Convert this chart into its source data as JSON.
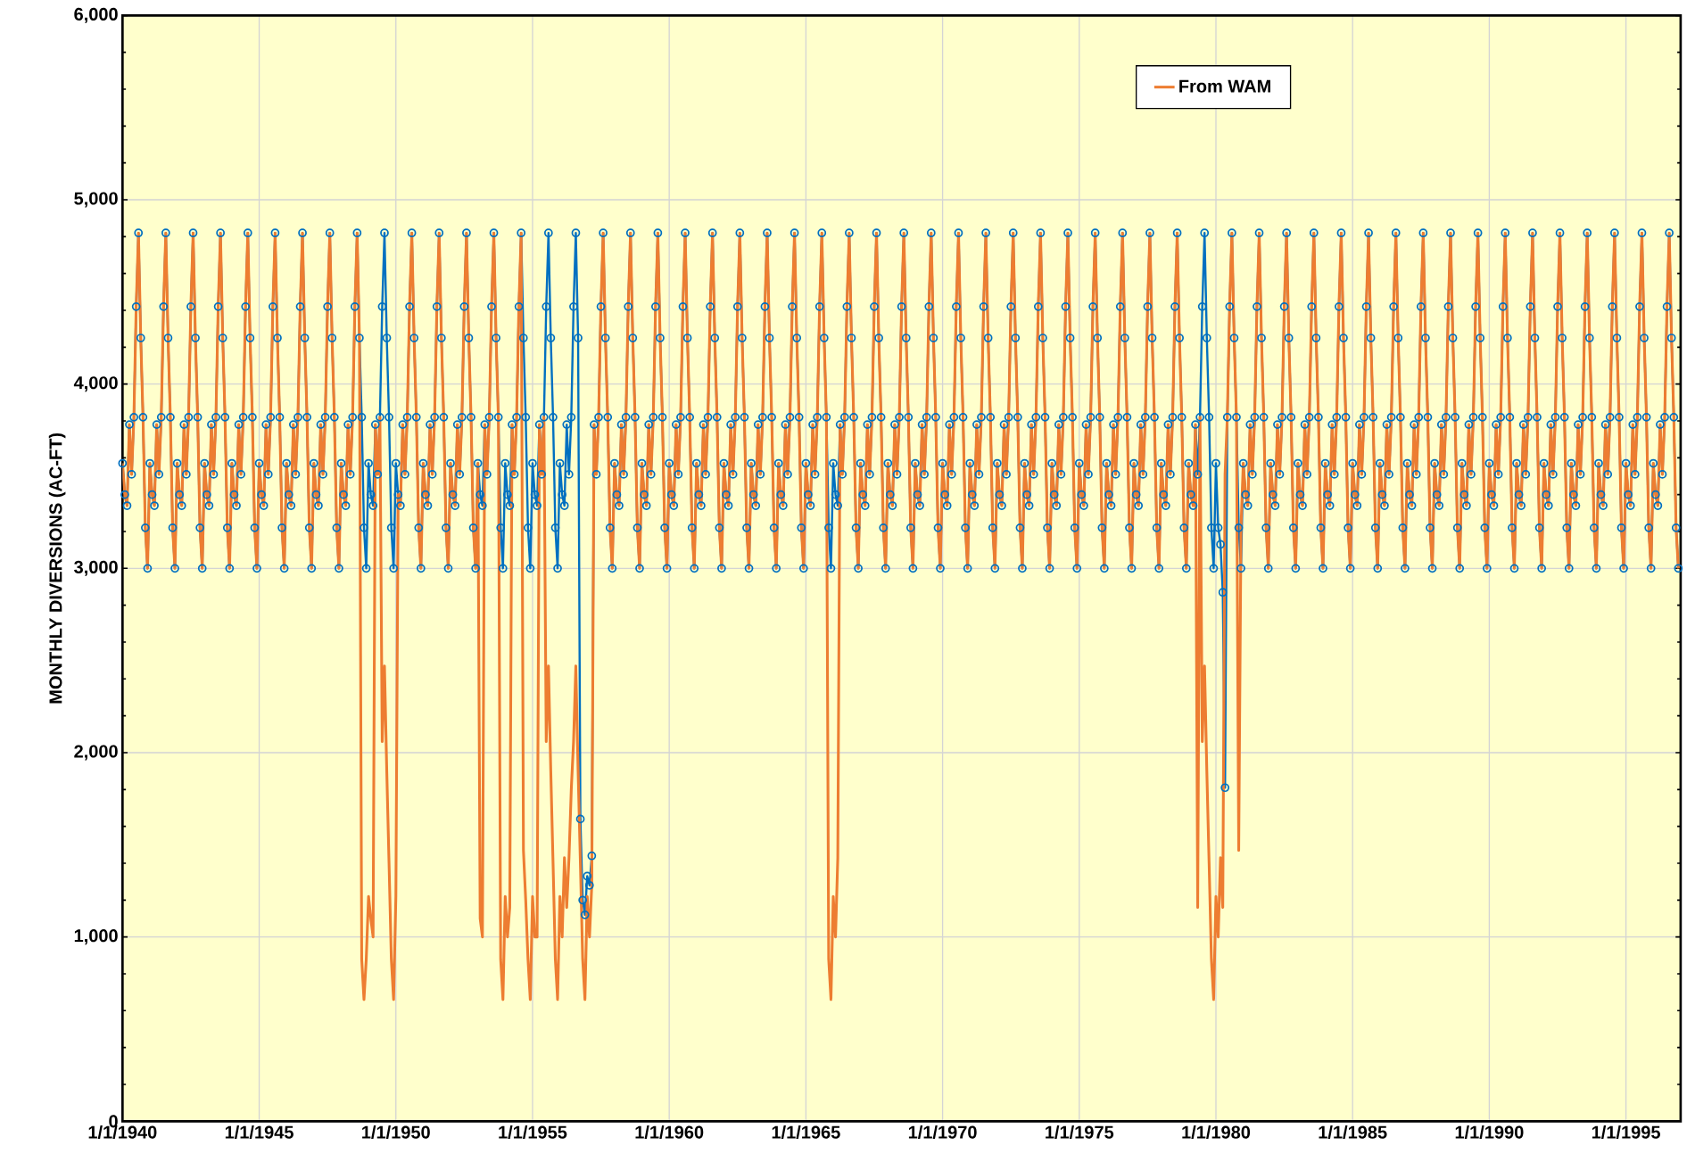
{
  "chart_data": {
    "type": "line",
    "ylabel": "MONTHLY DIVERSIONS (AC-FT)",
    "xlim": [
      "1940-01-01",
      "1997-01-01"
    ],
    "ylim": [
      0,
      6000
    ],
    "xticks": [
      {
        "value": "1940-01-01",
        "label": "1/1/1940"
      },
      {
        "value": "1945-01-01",
        "label": "1/1/1945"
      },
      {
        "value": "1950-01-01",
        "label": "1/1/1950"
      },
      {
        "value": "1955-01-01",
        "label": "1/1/1955"
      },
      {
        "value": "1960-01-01",
        "label": "1/1/1960"
      },
      {
        "value": "1965-01-01",
        "label": "1/1/1965"
      },
      {
        "value": "1970-01-01",
        "label": "1/1/1970"
      },
      {
        "value": "1975-01-01",
        "label": "1/1/1975"
      },
      {
        "value": "1980-01-01",
        "label": "1/1/1980"
      },
      {
        "value": "1985-01-01",
        "label": "1/1/1985"
      },
      {
        "value": "1990-01-01",
        "label": "1/1/1990"
      },
      {
        "value": "1995-01-01",
        "label": "1/1/1995"
      }
    ],
    "yticks": [
      0,
      {
        "value": 1000,
        "label": "1,000"
      },
      {
        "value": 2000,
        "label": "2,000"
      },
      {
        "value": 3000,
        "label": "3,000"
      },
      {
        "value": 4000,
        "label": "4,000"
      },
      {
        "value": 5000,
        "label": "5,000"
      },
      {
        "value": 6000,
        "label": "6,000"
      }
    ],
    "grid": true,
    "legend": "top right",
    "x": [
      "1940-01",
      "1940-02",
      "1940-03",
      "1940-04",
      "1940-05",
      "1940-06",
      "1940-07",
      "1940-08",
      "1940-09",
      "1940-10",
      "1940-11",
      "1940-12",
      "1941-01",
      "1941-02",
      "1941-03",
      "1941-04",
      "1941-05",
      "1941-06",
      "1941-07",
      "1941-08",
      "1941-09",
      "1941-10",
      "1941-11",
      "1941-12",
      "1942-01",
      "1942-02",
      "1942-03",
      "1942-04",
      "1942-05",
      "1942-06",
      "1942-07",
      "1942-08",
      "1942-09",
      "1942-10",
      "1942-11",
      "1942-12",
      "1943-01",
      "1943-02",
      "1943-03",
      "1943-04",
      "1943-05",
      "1943-06",
      "1943-07",
      "1943-08",
      "1943-09",
      "1943-10",
      "1943-11",
      "1943-12",
      "1944-01",
      "1944-02",
      "1944-03",
      "1944-04",
      "1944-05",
      "1944-06",
      "1944-07",
      "1944-08",
      "1944-09",
      "1944-10",
      "1944-11",
      "1944-12",
      "1945-01",
      "1945-02",
      "1945-03",
      "1945-04",
      "1945-05",
      "1945-06",
      "1945-07",
      "1945-08",
      "1945-09",
      "1945-10",
      "1945-11",
      "1945-12",
      "1946-01",
      "1946-02",
      "1946-03",
      "1946-04",
      "1946-05",
      "1946-06",
      "1946-07",
      "1946-08",
      "1946-09",
      "1946-10",
      "1946-11",
      "1946-12",
      "1947-01",
      "1947-02",
      "1947-03",
      "1947-04",
      "1947-05",
      "1947-06",
      "1947-07",
      "1947-08",
      "1947-09",
      "1947-10",
      "1947-11",
      "1947-12",
      "1948-01",
      "1948-02",
      "1948-03",
      "1948-04",
      "1948-05",
      "1948-06",
      "1948-07",
      "1948-08",
      "1948-09",
      "1948-10",
      "1948-11",
      "1948-12",
      "1949-01",
      "1949-02",
      "1949-03",
      "1949-04",
      "1949-05",
      "1949-06",
      "1949-07",
      "1949-08",
      "1949-09",
      "1949-10",
      "1949-11",
      "1949-12",
      "1950-01",
      "1950-02",
      "1950-03",
      "1950-04",
      "1950-05",
      "1950-06",
      "1950-07",
      "1950-08",
      "1950-09",
      "1950-10",
      "1950-11",
      "1950-12",
      "1951-01",
      "1951-02",
      "1951-03",
      "1951-04",
      "1951-05",
      "1951-06",
      "1951-07",
      "1951-08",
      "1951-09",
      "1951-10",
      "1951-11",
      "1951-12",
      "1952-01",
      "1952-02",
      "1952-03",
      "1952-04",
      "1952-05",
      "1952-06",
      "1952-07",
      "1952-08",
      "1952-09",
      "1952-10",
      "1952-11",
      "1952-12",
      "1953-01",
      "1953-02",
      "1953-03",
      "1953-04",
      "1953-05",
      "1953-06",
      "1953-07",
      "1953-08",
      "1953-09",
      "1953-10",
      "1953-11",
      "1953-12",
      "1954-01",
      "1954-02",
      "1954-03",
      "1954-04",
      "1954-05",
      "1954-06",
      "1954-07",
      "1954-08",
      "1954-09",
      "1954-10",
      "1954-11",
      "1954-12",
      "1955-01",
      "1955-02",
      "1955-03",
      "1955-04",
      "1955-05",
      "1955-06",
      "1955-07",
      "1955-08",
      "1955-09",
      "1955-10",
      "1955-11",
      "1955-12",
      "1956-01",
      "1956-02",
      "1956-03",
      "1956-04",
      "1956-05",
      "1956-06",
      "1956-07",
      "1956-08",
      "1956-09",
      "1956-10",
      "1956-11",
      "1956-12",
      "1957-01",
      "1957-02",
      "1957-03",
      "1957-04",
      "1957-05",
      "1957-06",
      "1957-07",
      "1957-08",
      "1957-09",
      "1957-10",
      "1957-11",
      "1957-12",
      "1958-01",
      "1958-02",
      "1958-03",
      "1958-04",
      "1958-05",
      "1958-06",
      "1958-07",
      "1958-08",
      "1958-09",
      "1958-10",
      "1958-11",
      "1958-12",
      "1959-01",
      "1959-02",
      "1959-03",
      "1959-04",
      "1959-05",
      "1959-06",
      "1959-07",
      "1959-08",
      "1959-09",
      "1959-10",
      "1959-11",
      "1959-12",
      "1960-01",
      "1960-02",
      "1960-03",
      "1960-04",
      "1960-05",
      "1960-06",
      "1960-07",
      "1960-08",
      "1960-09",
      "1960-10",
      "1960-11",
      "1960-12",
      "1961-01",
      "1961-02",
      "1961-03",
      "1961-04",
      "1961-05",
      "1961-06",
      "1961-07",
      "1961-08",
      "1961-09",
      "1961-10",
      "1961-11",
      "1961-12",
      "1962-01",
      "1962-02",
      "1962-03",
      "1962-04",
      "1962-05",
      "1962-06",
      "1962-07",
      "1962-08",
      "1962-09",
      "1962-10",
      "1962-11",
      "1962-12",
      "1963-01",
      "1963-02",
      "1963-03",
      "1963-04",
      "1963-05",
      "1963-06",
      "1963-07",
      "1963-08",
      "1963-09",
      "1963-10",
      "1963-11",
      "1963-12",
      "1964-01",
      "1964-02",
      "1964-03",
      "1964-04",
      "1964-05",
      "1964-06",
      "1964-07",
      "1964-08",
      "1964-09",
      "1964-10",
      "1964-11",
      "1964-12",
      "1965-01",
      "1965-02",
      "1965-03",
      "1965-04",
      "1965-05",
      "1965-06",
      "1965-07",
      "1965-08",
      "1965-09",
      "1965-10",
      "1965-11",
      "1965-12",
      "1966-01",
      "1966-02",
      "1966-03",
      "1966-04",
      "1966-05",
      "1966-06",
      "1966-07",
      "1966-08",
      "1966-09",
      "1966-10",
      "1966-11",
      "1966-12",
      "1967-01",
      "1967-02",
      "1967-03",
      "1967-04",
      "1967-05",
      "1967-06",
      "1967-07",
      "1967-08",
      "1967-09",
      "1967-10",
      "1967-11",
      "1967-12",
      "1968-01",
      "1968-02",
      "1968-03",
      "1968-04",
      "1968-05",
      "1968-06",
      "1968-07",
      "1968-08",
      "1968-09",
      "1968-10",
      "1968-11",
      "1968-12",
      "1969-01",
      "1969-02",
      "1969-03",
      "1969-04",
      "1969-05",
      "1969-06",
      "1969-07",
      "1969-08",
      "1969-09",
      "1969-10",
      "1969-11",
      "1969-12",
      "1970-01",
      "1970-02",
      "1970-03",
      "1970-04",
      "1970-05",
      "1970-06",
      "1970-07",
      "1970-08",
      "1970-09",
      "1970-10",
      "1970-11",
      "1970-12",
      "1971-01",
      "1971-02",
      "1971-03",
      "1971-04",
      "1971-05",
      "1971-06",
      "1971-07",
      "1971-08",
      "1971-09",
      "1971-10",
      "1971-11",
      "1971-12",
      "1972-01",
      "1972-02",
      "1972-03",
      "1972-04",
      "1972-05",
      "1972-06",
      "1972-07",
      "1972-08",
      "1972-09",
      "1972-10",
      "1972-11",
      "1972-12",
      "1973-01",
      "1973-02",
      "1973-03",
      "1973-04",
      "1973-05",
      "1973-06",
      "1973-07",
      "1973-08",
      "1973-09",
      "1973-10",
      "1973-11",
      "1973-12",
      "1974-01",
      "1974-02",
      "1974-03",
      "1974-04",
      "1974-05",
      "1974-06",
      "1974-07",
      "1974-08",
      "1974-09",
      "1974-10",
      "1974-11",
      "1974-12",
      "1975-01",
      "1975-02",
      "1975-03",
      "1975-04",
      "1975-05",
      "1975-06",
      "1975-07",
      "1975-08",
      "1975-09",
      "1975-10",
      "1975-11",
      "1975-12",
      "1976-01",
      "1976-02",
      "1976-03",
      "1976-04",
      "1976-05",
      "1976-06",
      "1976-07",
      "1976-08",
      "1976-09",
      "1976-10",
      "1976-11",
      "1976-12",
      "1977-01",
      "1977-02",
      "1977-03",
      "1977-04",
      "1977-05",
      "1977-06",
      "1977-07",
      "1977-08",
      "1977-09",
      "1977-10",
      "1977-11",
      "1977-12",
      "1978-01",
      "1978-02",
      "1978-03",
      "1978-04",
      "1978-05",
      "1978-06",
      "1978-07",
      "1978-08",
      "1978-09",
      "1978-10",
      "1978-11",
      "1978-12",
      "1979-01",
      "1979-02",
      "1979-03",
      "1979-04",
      "1979-05",
      "1979-06",
      "1979-07",
      "1979-08",
      "1979-09",
      "1979-10",
      "1979-11",
      "1979-12",
      "1980-01",
      "1980-02",
      "1980-03",
      "1980-04",
      "1980-05",
      "1980-06",
      "1980-07",
      "1980-08",
      "1980-09",
      "1980-10",
      "1980-11",
      "1980-12",
      "1981-01",
      "1981-02",
      "1981-03",
      "1981-04",
      "1981-05",
      "1981-06",
      "1981-07",
      "1981-08",
      "1981-09",
      "1981-10",
      "1981-11",
      "1981-12",
      "1982-01",
      "1982-02",
      "1982-03",
      "1982-04",
      "1982-05",
      "1982-06",
      "1982-07",
      "1982-08",
      "1982-09",
      "1982-10",
      "1982-11",
      "1982-12",
      "1983-01",
      "1983-02",
      "1983-03",
      "1983-04",
      "1983-05",
      "1983-06",
      "1983-07",
      "1983-08",
      "1983-09",
      "1983-10",
      "1983-11",
      "1983-12",
      "1984-01",
      "1984-02",
      "1984-03",
      "1984-04",
      "1984-05",
      "1984-06",
      "1984-07",
      "1984-08",
      "1984-09",
      "1984-10",
      "1984-11",
      "1984-12",
      "1985-01",
      "1985-02",
      "1985-03",
      "1985-04",
      "1985-05",
      "1985-06",
      "1985-07",
      "1985-08",
      "1985-09",
      "1985-10",
      "1985-11",
      "1985-12",
      "1986-01",
      "1986-02",
      "1986-03",
      "1986-04",
      "1986-05",
      "1986-06",
      "1986-07",
      "1986-08",
      "1986-09",
      "1986-10",
      "1986-11",
      "1986-12",
      "1987-01",
      "1987-02",
      "1987-03",
      "1987-04",
      "1987-05",
      "1987-06",
      "1987-07",
      "1987-08",
      "1987-09",
      "1987-10",
      "1987-11",
      "1987-12",
      "1988-01",
      "1988-02",
      "1988-03",
      "1988-04",
      "1988-05",
      "1988-06",
      "1988-07",
      "1988-08",
      "1988-09",
      "1988-10",
      "1988-11",
      "1988-12",
      "1989-01",
      "1989-02",
      "1989-03",
      "1989-04",
      "1989-05",
      "1989-06",
      "1989-07",
      "1989-08",
      "1989-09",
      "1989-10",
      "1989-11",
      "1989-12",
      "1990-01",
      "1990-02",
      "1990-03",
      "1990-04",
      "1990-05",
      "1990-06",
      "1990-07",
      "1990-08",
      "1990-09",
      "1990-10",
      "1990-11",
      "1990-12",
      "1991-01",
      "1991-02",
      "1991-03",
      "1991-04",
      "1991-05",
      "1991-06",
      "1991-07",
      "1991-08",
      "1991-09",
      "1991-10",
      "1991-11",
      "1991-12",
      "1992-01",
      "1992-02",
      "1992-03",
      "1992-04",
      "1992-05",
      "1992-06",
      "1992-07",
      "1992-08",
      "1992-09",
      "1992-10",
      "1992-11",
      "1992-12",
      "1993-01",
      "1993-02",
      "1993-03",
      "1993-04",
      "1993-05",
      "1993-06",
      "1993-07",
      "1993-08",
      "1993-09",
      "1993-10",
      "1993-11",
      "1993-12",
      "1994-01",
      "1994-02",
      "1994-03",
      "1994-04",
      "1994-05",
      "1994-06",
      "1994-07",
      "1994-08",
      "1994-09",
      "1994-10",
      "1994-11",
      "1994-12",
      "1995-01",
      "1995-02",
      "1995-03",
      "1995-04",
      "1995-05",
      "1995-06",
      "1995-07",
      "1995-08",
      "1995-09",
      "1995-10",
      "1995-11",
      "1995-12",
      "1996-01",
      "1996-02",
      "1996-03",
      "1996-04",
      "1996-05",
      "1996-06",
      "1996-07",
      "1996-08",
      "1996-09",
      "1996-10",
      "1996-11",
      "1996-12"
    ],
    "series": [
      {
        "color": "#0070c0",
        "marker": "circle",
        "values": [
          3570,
          3400,
          3340,
          3780,
          3510,
          3820,
          4420,
          4820,
          4250,
          3820,
          3220,
          3000,
          3570,
          3400,
          3340,
          3780,
          3510,
          3820,
          4420,
          4820,
          4250,
          3820,
          3220,
          3000,
          3570,
          3400,
          3340,
          3780,
          3510,
          3820,
          4420,
          4820,
          4250,
          3820,
          3220,
          3000,
          3570,
          3400,
          3340,
          3780,
          3510,
          3820,
          4420,
          4820,
          4250,
          3820,
          3220,
          3000,
          3570,
          3400,
          3340,
          3780,
          3510,
          3820,
          4420,
          4820,
          4250,
          3820,
          3220,
          3000,
          3570,
          3400,
          3340,
          3780,
          3510,
          3820,
          4420,
          4820,
          4250,
          3820,
          3220,
          3000,
          3570,
          3400,
          3340,
          3780,
          3510,
          3820,
          4420,
          4820,
          4250,
          3820,
          3220,
          3000,
          3570,
          3400,
          3340,
          3780,
          3510,
          3820,
          4420,
          4820,
          4250,
          3820,
          3220,
          3000,
          3570,
          3400,
          3340,
          3780,
          3510,
          3820,
          4420,
          4820,
          4250,
          3820,
          3220,
          3000,
          3570,
          3400,
          3340,
          3780,
          3510,
          3820,
          4420,
          4820,
          4250,
          3820,
          3220,
          3000,
          3570,
          3400,
          3340,
          3780,
          3510,
          3820,
          4420,
          4820,
          4250,
          3820,
          3220,
          3000,
          3570,
          3400,
          3340,
          3780,
          3510,
          3820,
          4420,
          4820,
          4250,
          3820,
          3220,
          3000,
          3570,
          3400,
          3340,
          3780,
          3510,
          3820,
          4420,
          4820,
          4250,
          3820,
          3220,
          3000,
          3570,
          3400,
          3340,
          3780,
          3510,
          3820,
          4420,
          4820,
          4250,
          3820,
          3220,
          3000,
          3570,
          3400,
          3340,
          3780,
          3510,
          3820,
          4420,
          4820,
          4250,
          3820,
          3220,
          3000,
          3570,
          3400,
          3340,
          3780,
          3510,
          3820,
          4420,
          4820,
          4250,
          3820,
          3220,
          3000,
          3570,
          3400,
          3340,
          3780,
          3510,
          3820,
          4420,
          4820,
          4250,
          1640,
          1200,
          1120,
          1330,
          1280,
          1440,
          3780,
          3510,
          3820,
          4420,
          4820,
          4250,
          3820,
          3220,
          3000,
          3570,
          3400,
          3340,
          3780,
          3510,
          3820,
          4420,
          4820,
          4250,
          3820,
          3220,
          3000,
          3570,
          3400,
          3340,
          3780,
          3510,
          3820,
          4420,
          4820,
          4250,
          3820,
          3220,
          3000,
          3570,
          3400,
          3340,
          3780,
          3510,
          3820,
          4420,
          4820,
          4250,
          3820,
          3220,
          3000,
          3570,
          3400,
          3340,
          3780,
          3510,
          3820,
          4420,
          4820,
          4250,
          3820,
          3220,
          3000,
          3570,
          3400,
          3340,
          3780,
          3510,
          3820,
          4420,
          4820,
          4250,
          3820,
          3220,
          3000,
          3570,
          3400,
          3340,
          3780,
          3510,
          3820,
          4420,
          4820,
          4250,
          3820,
          3220,
          3000,
          3570,
          3400,
          3340,
          3780,
          3510,
          3820,
          4420,
          4820,
          4250,
          3820,
          3220,
          3000,
          3570,
          3400,
          3340,
          3780,
          3510,
          3820,
          4420,
          4820,
          4250,
          3820,
          3220,
          3000,
          3570,
          3400,
          3340,
          3780,
          3510,
          3820,
          4420,
          4820,
          4250,
          3820,
          3220,
          3000,
          3570,
          3400,
          3340,
          3780,
          3510,
          3820,
          4420,
          4820,
          4250,
          3820,
          3220,
          3000,
          3570,
          3400,
          3340,
          3780,
          3510,
          3820,
          4420,
          4820,
          4250,
          3820,
          3220,
          3000,
          3570,
          3400,
          3340,
          3780,
          3510,
          3820,
          4420,
          4820,
          4250,
          3820,
          3220,
          3000,
          3570,
          3400,
          3340,
          3780,
          3510,
          3820,
          4420,
          4820,
          4250,
          3820,
          3220,
          3000,
          3570,
          3400,
          3340,
          3780,
          3510,
          3820,
          4420,
          4820,
          4250,
          3820,
          3220,
          3000,
          3570,
          3400,
          3340,
          3780,
          3510,
          3820,
          4420,
          4820,
          4250,
          3820,
          3220,
          3000,
          3570,
          3400,
          3340,
          3780,
          3510,
          3820,
          4420,
          4820,
          4250,
          3820,
          3220,
          3000,
          3570,
          3400,
          3340,
          3780,
          3510,
          3820,
          4420,
          4820,
          4250,
          3820,
          3220,
          3000,
          3570,
          3400,
          3340,
          3780,
          3510,
          3820,
          4420,
          4820,
          4250,
          3820,
          3220,
          3000,
          3570,
          3400,
          3340,
          3780,
          3510,
          3820,
          4420,
          4820,
          4250,
          3820,
          3220,
          3000,
          3570,
          3400,
          3340,
          3780,
          3510,
          3820,
          4420,
          4820,
          4250,
          3820,
          3220,
          3000,
          3570,
          3400,
          3340,
          3780,
          3510,
          3820,
          4420,
          4820,
          4250,
          3820,
          3220,
          3000,
          3570,
          3400,
          3340,
          3780,
          3510,
          3820,
          4420,
          4820,
          4250,
          3820,
          3220,
          3000,
          3570,
          3220,
          3130,
          2870,
          1810,
          3820,
          4420,
          4820,
          4250,
          3820,
          3220,
          3000,
          3570,
          3400,
          3340,
          3780,
          3510,
          3820,
          4420,
          4820,
          4250,
          3820,
          3220,
          3000,
          3570,
          3400,
          3340,
          3780,
          3510,
          3820,
          4420,
          4820,
          4250,
          3820,
          3220,
          3000,
          3570,
          3400,
          3340,
          3780,
          3510,
          3820,
          4420,
          4820,
          4250,
          3820,
          3220,
          3000,
          3570,
          3400,
          3340,
          3780,
          3510,
          3820,
          4420,
          4820,
          4250,
          3820,
          3220,
          3000,
          3570,
          3400,
          3340,
          3780,
          3510,
          3820,
          4420,
          4820,
          4250,
          3820,
          3220,
          3000,
          3570,
          3400,
          3340,
          3780,
          3510,
          3820,
          4420,
          4820,
          4250,
          3820,
          3220,
          3000,
          3570,
          3400,
          3340,
          3780,
          3510,
          3820,
          4420,
          4820,
          4250,
          3820,
          3220,
          3000,
          3570,
          3400,
          3340,
          3780,
          3510,
          3820,
          4420,
          4820,
          4250,
          3820,
          3220,
          3000,
          3570,
          3400,
          3340,
          3780,
          3510,
          3820,
          4420,
          4820,
          4250,
          3820,
          3220,
          3000,
          3570,
          3400,
          3340,
          3780,
          3510,
          3820,
          4420,
          4820,
          4250,
          3820,
          3220,
          3000,
          3570,
          3400,
          3340,
          3780,
          3510,
          3820,
          4420,
          4820,
          4250,
          3820,
          3220,
          3000,
          3570,
          3400,
          3340,
          3780,
          3510,
          3820,
          4420,
          4820,
          4250,
          3820,
          3220,
          3000,
          3570,
          3400,
          3340,
          3780,
          3510,
          3820,
          4420,
          4820,
          4250,
          3820,
          3220,
          3000,
          3570,
          3400,
          3340,
          3780,
          3510,
          3820,
          4420,
          4820,
          4250,
          3820,
          3220,
          3000,
          3570,
          3400,
          3340,
          3780,
          3510,
          3820,
          4420,
          4820,
          4250,
          3820,
          3220,
          3000,
          3570,
          3400,
          3340,
          3780,
          3510,
          3820,
          4420,
          4820,
          4250,
          3820,
          3220,
          3000
        ]
      },
      {
        "name": "From WAM",
        "color": "#ed7d31",
        "values": [
          3570,
          3400,
          3340,
          3780,
          3510,
          3820,
          4420,
          4820,
          4250,
          3820,
          3220,
          3000,
          3570,
          3400,
          3340,
          3780,
          3510,
          3820,
          4420,
          4820,
          4250,
          3820,
          3220,
          3000,
          3570,
          3400,
          3340,
          3780,
          3510,
          3820,
          4420,
          4820,
          4250,
          3820,
          3220,
          3000,
          3570,
          3400,
          3340,
          3780,
          3510,
          3820,
          4420,
          4820,
          4250,
          3820,
          3220,
          3000,
          3570,
          3400,
          3340,
          3780,
          3510,
          3820,
          4420,
          4820,
          4250,
          3820,
          3220,
          3000,
          3570,
          3400,
          3340,
          3780,
          3510,
          3820,
          4420,
          4820,
          4250,
          3820,
          3220,
          3000,
          3570,
          3400,
          3340,
          3780,
          3510,
          3820,
          4420,
          4820,
          4250,
          3820,
          3220,
          3000,
          3570,
          3400,
          3340,
          3780,
          3510,
          3820,
          4420,
          4820,
          4250,
          3820,
          3220,
          3000,
          3570,
          3400,
          3340,
          3780,
          3510,
          3820,
          4420,
          4820,
          4250,
          880,
          660,
          880,
          1220,
          1100,
          1000,
          3780,
          3510,
          3820,
          2060,
          2470,
          1900,
          1400,
          880,
          660,
          1220,
          3400,
          3340,
          3780,
          3510,
          3820,
          4420,
          4820,
          4250,
          3820,
          3220,
          3000,
          3570,
          3400,
          3340,
          3780,
          3510,
          3820,
          4420,
          4820,
          4250,
          3820,
          3220,
          3000,
          3570,
          3400,
          3340,
          3780,
          3510,
          3820,
          4420,
          4820,
          4250,
          3820,
          3220,
          3000,
          3570,
          1100,
          1000,
          3780,
          3510,
          3820,
          4420,
          4820,
          4250,
          3820,
          880,
          660,
          1220,
          1000,
          1160,
          3780,
          3510,
          3820,
          4420,
          4820,
          1470,
          1200,
          880,
          660,
          1220,
          1000,
          1000,
          3780,
          3510,
          3820,
          2060,
          2470,
          1900,
          1400,
          880,
          660,
          1220,
          1000,
          1430,
          1160,
          1430,
          1800,
          2060,
          2470,
          1900,
          1400,
          880,
          660,
          1220,
          1000,
          1280,
          3780,
          3510,
          3820,
          4420,
          4820,
          4250,
          3820,
          3220,
          3000,
          3570,
          3400,
          3340,
          3780,
          3510,
          3820,
          4420,
          4820,
          4250,
          3820,
          3220,
          3000,
          3570,
          3400,
          3340,
          3780,
          3510,
          3820,
          4420,
          4820,
          4250,
          3820,
          3220,
          3000,
          3570,
          3400,
          3340,
          3780,
          3510,
          3820,
          4420,
          4820,
          4250,
          3820,
          3220,
          3000,
          3570,
          3400,
          3340,
          3780,
          3510,
          3820,
          4420,
          4820,
          4250,
          3820,
          3220,
          3000,
          3570,
          3400,
          3340,
          3780,
          3510,
          3820,
          4420,
          4820,
          4250,
          3820,
          3220,
          3000,
          3570,
          3400,
          3340,
          3780,
          3510,
          3820,
          4420,
          4820,
          4250,
          3820,
          3220,
          3000,
          3570,
          3400,
          3340,
          3780,
          3510,
          3820,
          4420,
          4820,
          4250,
          3820,
          3220,
          3000,
          3570,
          3400,
          3340,
          3780,
          3510,
          3820,
          4420,
          4820,
          4250,
          3820,
          880,
          660,
          1220,
          1000,
          1430,
          3780,
          3510,
          3820,
          4420,
          4820,
          4250,
          3820,
          3220,
          3000,
          3570,
          3400,
          3340,
          3780,
          3510,
          3820,
          4420,
          4820,
          4250,
          3820,
          3220,
          3000,
          3570,
          3400,
          3340,
          3780,
          3510,
          3820,
          4420,
          4820,
          4250,
          3820,
          3220,
          3000,
          3570,
          3400,
          3340,
          3780,
          3510,
          3820,
          4420,
          4820,
          4250,
          3820,
          3220,
          3000,
          3570,
          3400,
          3340,
          3780,
          3510,
          3820,
          4420,
          4820,
          4250,
          3820,
          3220,
          3000,
          3570,
          3400,
          3340,
          3780,
          3510,
          3820,
          4420,
          4820,
          4250,
          3820,
          3220,
          3000,
          3570,
          3400,
          3340,
          3780,
          3510,
          3820,
          4420,
          4820,
          4250,
          3820,
          3220,
          3000,
          3570,
          3400,
          3340,
          3780,
          3510,
          3820,
          4420,
          4820,
          4250,
          3820,
          3220,
          3000,
          3570,
          3400,
          3340,
          3780,
          3510,
          3820,
          4420,
          4820,
          4250,
          3820,
          3220,
          3000,
          3570,
          3400,
          3340,
          3780,
          3510,
          3820,
          4420,
          4820,
          4250,
          3820,
          3220,
          3000,
          3570,
          3400,
          3340,
          3780,
          3510,
          3820,
          4420,
          4820,
          4250,
          3820,
          3220,
          3000,
          3570,
          3400,
          3340,
          3780,
          3510,
          3820,
          4420,
          4820,
          4250,
          3820,
          3220,
          3000,
          3570,
          3400,
          3340,
          3780,
          3510,
          3820,
          4420,
          4820,
          4250,
          3820,
          3220,
          3000,
          3570,
          3400,
          3340,
          3780,
          1160,
          3820,
          2060,
          2470,
          1900,
          1400,
          880,
          660,
          1220,
          1000,
          1430,
          1160,
          3510,
          3820,
          4420,
          4820,
          4250,
          3820,
          1470,
          3220,
          3570,
          3400,
          3340,
          3780,
          3510,
          3820,
          4420,
          4820,
          4250,
          3820,
          3220,
          3000,
          3570,
          3400,
          3340,
          3780,
          3510,
          3820,
          4420,
          4820,
          4250,
          3820,
          3220,
          3000,
          3570,
          3400,
          3340,
          3780,
          3510,
          3820,
          4420,
          4820,
          4250,
          3820,
          3220,
          3000,
          3570,
          3400,
          3340,
          3780,
          3510,
          3820,
          4420,
          4820,
          4250,
          3820,
          3220,
          3000,
          3570,
          3400,
          3340,
          3780,
          3510,
          3820,
          4420,
          4820,
          4250,
          3820,
          3220,
          3000,
          3570,
          3400,
          3340,
          3780,
          3510,
          3820,
          4420,
          4820,
          4250,
          3820,
          3220,
          3000,
          3570,
          3400,
          3340,
          3780,
          3510,
          3820,
          4420,
          4820,
          4250,
          3820,
          3220,
          3000,
          3570,
          3400,
          3340,
          3780,
          3510,
          3820,
          4420,
          4820,
          4250,
          3820,
          3220,
          3000,
          3570,
          3400,
          3340,
          3780,
          3510,
          3820,
          4420,
          4820,
          4250,
          3820,
          3220,
          3000,
          3570,
          3400,
          3340,
          3780,
          3510,
          3820,
          4420,
          4820,
          4250,
          3820,
          3220,
          3000,
          3570,
          3400,
          3340,
          3780,
          3510,
          3820,
          4420,
          4820,
          4250,
          3820,
          3220,
          3000,
          3570,
          3400,
          3340,
          3780,
          3510,
          3820,
          4420,
          4820,
          4250,
          3820,
          3220,
          3000,
          3570,
          3400,
          3340,
          3780,
          3510,
          3820,
          4420,
          4820,
          4250,
          3820,
          3220,
          3000,
          3570,
          3400,
          3340,
          3780,
          3510,
          3820,
          4420,
          4820,
          4250,
          3820,
          3220,
          3000,
          3570,
          3400,
          3340,
          3780,
          3510,
          3820,
          4420,
          4820,
          4250,
          3820,
          3220,
          3000,
          3570,
          3400,
          3340,
          3780,
          3510,
          3820,
          4420,
          4820,
          4250,
          3820,
          3220,
          3000
        ]
      }
    ]
  }
}
